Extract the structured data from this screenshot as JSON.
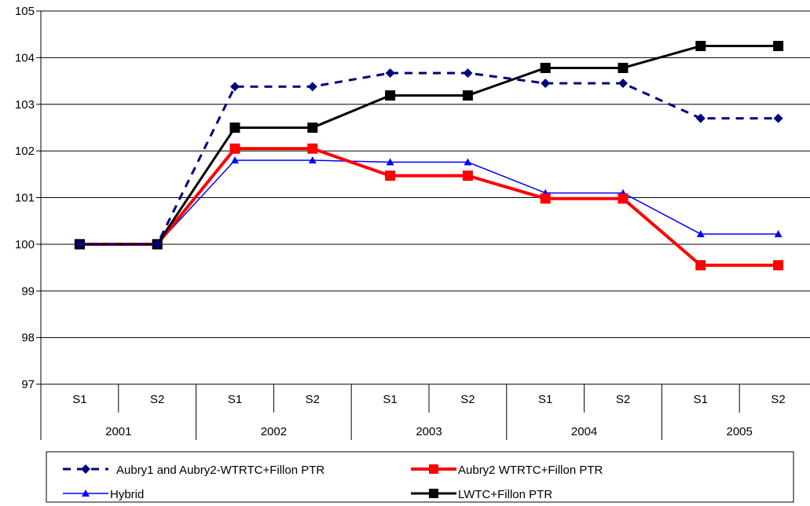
{
  "chart_data": {
    "type": "line",
    "title": "",
    "xlabel": "",
    "ylabel": "",
    "ylim": [
      97,
      105
    ],
    "yticks": [
      97,
      98,
      99,
      100,
      101,
      102,
      103,
      104,
      105
    ],
    "grid": "horizontal",
    "legend_position": "bottom",
    "x_sublabels": [
      "S1",
      "S2",
      "S1",
      "S2",
      "S1",
      "S2",
      "S1",
      "S2",
      "S1",
      "S2"
    ],
    "x_groups": [
      "2001",
      "2002",
      "2003",
      "2004",
      "2005"
    ],
    "series": [
      {
        "name": "Aubry1 and Aubry2-WTRTC+Fillon PTR",
        "color": "#000080",
        "line_style": "dashed",
        "marker": "diamond",
        "values": [
          100.0,
          100.0,
          103.38,
          103.38,
          103.67,
          103.67,
          103.45,
          103.45,
          102.7,
          102.7
        ]
      },
      {
        "name": "Aubry2 WTRTC+Fillon PTR",
        "color": "#ff0000",
        "line_style": "solid",
        "marker": "square",
        "values": [
          100.0,
          100.0,
          102.05,
          102.05,
          101.47,
          101.47,
          100.98,
          100.98,
          99.55,
          99.55
        ]
      },
      {
        "name": "Hybrid",
        "color": "#0000ff",
        "line_style": "solid",
        "marker": "triangle",
        "values": [
          100.0,
          100.0,
          101.8,
          101.8,
          101.76,
          101.76,
          101.1,
          101.1,
          100.22,
          100.22
        ]
      },
      {
        "name": "LWTC+Fillon PTR",
        "color": "#000000",
        "line_style": "solid",
        "marker": "square",
        "values": [
          100.0,
          100.0,
          102.5,
          102.5,
          103.19,
          103.19,
          103.78,
          103.78,
          104.25,
          104.25
        ]
      }
    ]
  }
}
